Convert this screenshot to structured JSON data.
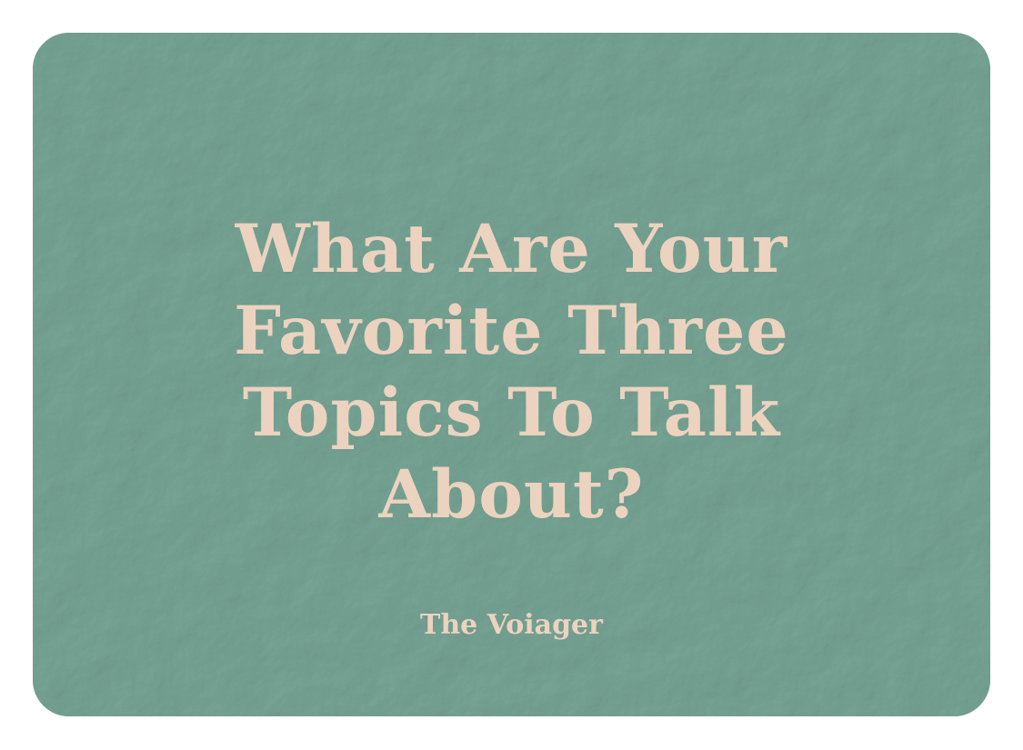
{
  "card": {
    "question": "What Are Your Favorite Three Topics To Talk About?",
    "brand": "The Voiager"
  },
  "colors": {
    "page_background": "#ffffff",
    "card_background": "#77a596",
    "text": "#ecd3bf"
  }
}
